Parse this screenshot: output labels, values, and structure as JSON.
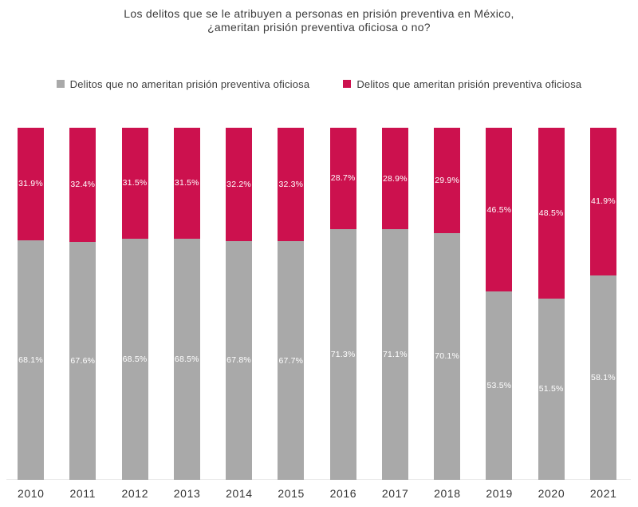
{
  "title": {
    "line1": "Los delitos que se le atribuyen a personas en prisión preventiva en México,",
    "line2": "¿ameritan prisión preventiva oficiosa o no?"
  },
  "colors": {
    "no_ameritan_gray": "#a9a9a9",
    "ameritan_crimson": "#cc114e",
    "axis_line": "#ebebeb",
    "title_text": "#3c3c3c",
    "bar_value_text": "#ffffff"
  },
  "legend": {
    "items": [
      {
        "label": "Delitos que no ameritan prisión preventiva oficiosa",
        "color": "#a9a9a9"
      },
      {
        "label": "Delitos que ameritan prisión preventiva oficiosa",
        "color": "#cc114e"
      }
    ]
  },
  "chart_data": {
    "type": "bar",
    "stacked": true,
    "title": "Los delitos que se le atribuyen a personas en prisión preventiva en México, ¿ameritan prisión preventiva oficiosa o no?",
    "categories": [
      "2010",
      "2011",
      "2012",
      "2013",
      "2014",
      "2015",
      "2016",
      "2017",
      "2018",
      "2019",
      "2020",
      "2021"
    ],
    "series": [
      {
        "name": "Delitos que no ameritan prisión preventiva oficiosa",
        "color": "#a9a9a9",
        "position": "bottom",
        "values": [
          68.1,
          67.6,
          68.5,
          68.5,
          67.8,
          67.7,
          71.3,
          71.1,
          70.1,
          53.5,
          51.5,
          58.1
        ]
      },
      {
        "name": "Delitos que ameritan prisión preventiva oficiosa",
        "color": "#cc114e",
        "position": "top",
        "values": [
          31.9,
          32.4,
          31.5,
          31.5,
          32.2,
          32.3,
          28.7,
          28.9,
          29.9,
          46.5,
          48.5,
          41.9
        ]
      }
    ],
    "value_suffix": "%",
    "ylim": [
      0,
      100
    ],
    "grid": false,
    "y_axis_shown": false,
    "legend_position": "top"
  }
}
